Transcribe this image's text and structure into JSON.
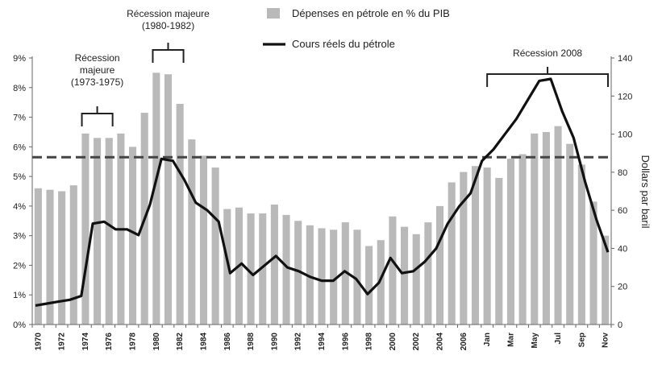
{
  "chart_data": {
    "type": "bar",
    "legend": {
      "bar_label": "Dépenses en pétrole en % du PIB",
      "line_label": "Cours réels du pétrole",
      "bar_color": "#b9b9b9",
      "line_color": "#111111"
    },
    "y_left": {
      "min": 0,
      "max": 9,
      "ticks": [
        "0%",
        "1%",
        "2%",
        "3%",
        "4%",
        "5%",
        "6%",
        "7%",
        "8%",
        "9%"
      ]
    },
    "y_right": {
      "min": 0,
      "max": 140,
      "ticks": [
        "0",
        "20",
        "40",
        "60",
        "80",
        "100",
        "120",
        "140"
      ],
      "label": "Dollars par baril"
    },
    "threshold_pct": 5.65,
    "x_tick_labels": [
      {
        "i": 0,
        "text": "1970"
      },
      {
        "i": 2,
        "text": "1972"
      },
      {
        "i": 4,
        "text": "1974"
      },
      {
        "i": 6,
        "text": "1976"
      },
      {
        "i": 8,
        "text": "1978"
      },
      {
        "i": 10,
        "text": "1980"
      },
      {
        "i": 12,
        "text": "1982"
      },
      {
        "i": 14,
        "text": "1984"
      },
      {
        "i": 16,
        "text": "1986"
      },
      {
        "i": 18,
        "text": "1988"
      },
      {
        "i": 20,
        "text": "1990"
      },
      {
        "i": 22,
        "text": "1992"
      },
      {
        "i": 24,
        "text": "1994"
      },
      {
        "i": 26,
        "text": "1996"
      },
      {
        "i": 28,
        "text": "1998"
      },
      {
        "i": 30,
        "text": "2000"
      },
      {
        "i": 32,
        "text": "2002"
      },
      {
        "i": 34,
        "text": "2004"
      },
      {
        "i": 36,
        "text": "2006"
      },
      {
        "i": 38,
        "text": "Jan"
      },
      {
        "i": 40,
        "text": "Mar"
      },
      {
        "i": 42,
        "text": "May"
      },
      {
        "i": 44,
        "text": "Jul"
      },
      {
        "i": 46,
        "text": "Sep"
      },
      {
        "i": 48,
        "text": "Nov"
      }
    ],
    "bars_pct": [
      4.6,
      4.55,
      4.5,
      4.7,
      6.45,
      6.3,
      6.3,
      6.45,
      6.0,
      7.15,
      8.5,
      8.45,
      7.45,
      6.25,
      5.7,
      5.3,
      3.9,
      3.95,
      3.75,
      3.75,
      4.05,
      3.7,
      3.5,
      3.35,
      3.25,
      3.2,
      3.45,
      3.2,
      2.65,
      2.85,
      3.65,
      3.3,
      3.05,
      3.45,
      4.0,
      4.8,
      5.15,
      5.35,
      5.3,
      4.95,
      5.6,
      5.75,
      6.45,
      6.5,
      6.7,
      6.1,
      5.4,
      4.15,
      3.0
    ],
    "line_usd": [
      10,
      11,
      12,
      13,
      15,
      53,
      54,
      50,
      50,
      47,
      63,
      87,
      86,
      76,
      64,
      60,
      54,
      27,
      32,
      26,
      31,
      36,
      30,
      28,
      25,
      23,
      23,
      28,
      24,
      16,
      22,
      35,
      27,
      28,
      33,
      40,
      53,
      62,
      69,
      86,
      92,
      100,
      108,
      118,
      128,
      129,
      112,
      98,
      75,
      55,
      38
    ],
    "annotations": [
      {
        "lines": [
          "Récession",
          "majeure",
          "(1973-1975)"
        ],
        "from": 4,
        "to": 7
      },
      {
        "lines": [
          "Récession majeure",
          "(1980-1982)"
        ],
        "from": 10,
        "to": 13
      },
      {
        "lines": [
          "Récession 2008"
        ],
        "from": 38.3,
        "to": 50
      }
    ]
  }
}
